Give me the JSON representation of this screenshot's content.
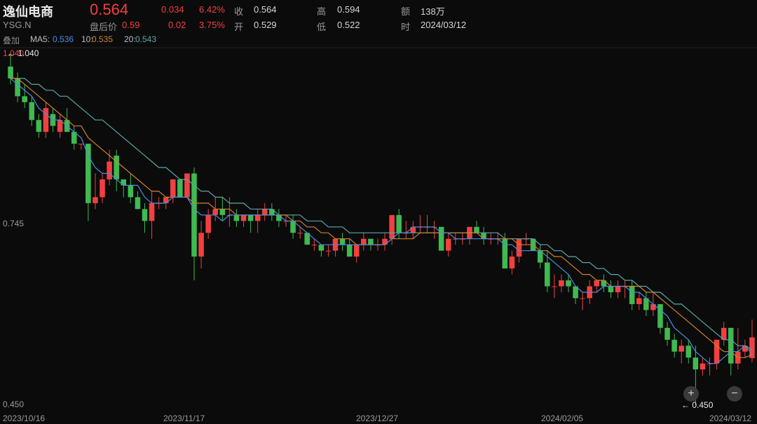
{
  "header": {
    "name": "逸仙电商",
    "symbol": "YSG.N",
    "price": "0.564",
    "change": "0.034",
    "change_pct": "6.42%",
    "after_label": "盘后价",
    "after_price": "0.59",
    "after_change": "0.02",
    "after_change_pct": "3.75%",
    "close_label": "收",
    "close": "0.564",
    "open_label": "开",
    "open": "0.529",
    "high_label": "高",
    "high": "0.594",
    "low_label": "低",
    "low": "0.522",
    "amount_label": "额",
    "amount": "138万",
    "time_label": "时",
    "time": "2024/03/12"
  },
  "indicators": {
    "overlay_label": "叠加",
    "ma5_label": "MA5:",
    "ma5": "0.536",
    "ma10_label": "10:",
    "ma10": "0.535",
    "ma20_label": "20:",
    "ma20": "0.543"
  },
  "controls": {
    "plus_icon": "+",
    "minus_icon": "−"
  },
  "colors": {
    "up": "#f2403f",
    "down": "#3fb950",
    "ma5": "#4a8fe0",
    "ma10": "#d0822c",
    "ma20": "#5aa8a8"
  },
  "chart_data": {
    "type": "candlestick",
    "ylim": [
      0.45,
      1.04
    ],
    "y_axis_labels": [
      "1.040",
      "0.745",
      "0.450"
    ],
    "x_axis_labels": [
      "2023/10/16",
      "2023/11/17",
      "2023/12/27",
      "2024/02/05",
      "2024/03/12"
    ],
    "max_marker": "1.040",
    "min_marker": "0.450",
    "candles": [
      [
        1.02,
        1.04,
        0.99,
        1.0
      ],
      [
        1.0,
        1.01,
        0.96,
        0.97
      ],
      [
        0.97,
        0.99,
        0.95,
        0.96
      ],
      [
        0.96,
        0.97,
        0.92,
        0.93
      ],
      [
        0.93,
        0.94,
        0.9,
        0.91
      ],
      [
        0.91,
        0.96,
        0.9,
        0.95
      ],
      [
        0.94,
        0.95,
        0.91,
        0.92
      ],
      [
        0.91,
        0.94,
        0.9,
        0.93
      ],
      [
        0.93,
        0.95,
        0.91,
        0.91
      ],
      [
        0.91,
        0.92,
        0.88,
        0.89
      ],
      [
        0.89,
        0.89,
        0.88,
        0.89
      ],
      [
        0.89,
        0.89,
        0.76,
        0.79
      ],
      [
        0.79,
        0.84,
        0.78,
        0.8
      ],
      [
        0.8,
        0.84,
        0.79,
        0.83
      ],
      [
        0.83,
        0.88,
        0.82,
        0.86
      ],
      [
        0.87,
        0.88,
        0.81,
        0.83
      ],
      [
        0.83,
        0.83,
        0.8,
        0.82
      ],
      [
        0.82,
        0.84,
        0.79,
        0.8
      ],
      [
        0.8,
        0.81,
        0.78,
        0.78
      ],
      [
        0.78,
        0.79,
        0.74,
        0.76
      ],
      [
        0.76,
        0.81,
        0.73,
        0.79
      ],
      [
        0.79,
        0.8,
        0.78,
        0.79
      ],
      [
        0.79,
        0.8,
        0.78,
        0.8
      ],
      [
        0.8,
        0.83,
        0.79,
        0.83
      ],
      [
        0.83,
        0.83,
        0.8,
        0.8
      ],
      [
        0.8,
        0.84,
        0.8,
        0.84
      ],
      [
        0.84,
        0.85,
        0.66,
        0.7
      ],
      [
        0.7,
        0.76,
        0.68,
        0.74
      ],
      [
        0.74,
        0.78,
        0.73,
        0.77
      ],
      [
        0.77,
        0.8,
        0.76,
        0.78
      ],
      [
        0.78,
        0.8,
        0.76,
        0.77
      ],
      [
        0.77,
        0.8,
        0.75,
        0.77
      ],
      [
        0.77,
        0.78,
        0.75,
        0.76
      ],
      [
        0.76,
        0.77,
        0.75,
        0.77
      ],
      [
        0.77,
        0.77,
        0.74,
        0.76
      ],
      [
        0.76,
        0.78,
        0.74,
        0.77
      ],
      [
        0.77,
        0.79,
        0.76,
        0.78
      ],
      [
        0.78,
        0.79,
        0.76,
        0.77
      ],
      [
        0.77,
        0.78,
        0.75,
        0.76
      ],
      [
        0.76,
        0.77,
        0.75,
        0.76
      ],
      [
        0.76,
        0.77,
        0.73,
        0.74
      ],
      [
        0.74,
        0.75,
        0.73,
        0.74
      ],
      [
        0.74,
        0.74,
        0.72,
        0.72
      ],
      [
        0.72,
        0.73,
        0.71,
        0.72
      ],
      [
        0.72,
        0.72,
        0.7,
        0.71
      ],
      [
        0.71,
        0.72,
        0.7,
        0.71
      ],
      [
        0.71,
        0.73,
        0.7,
        0.73
      ],
      [
        0.73,
        0.74,
        0.71,
        0.72
      ],
      [
        0.72,
        0.73,
        0.7,
        0.7
      ],
      [
        0.7,
        0.72,
        0.69,
        0.72
      ],
      [
        0.72,
        0.74,
        0.71,
        0.73
      ],
      [
        0.73,
        0.73,
        0.71,
        0.72
      ],
      [
        0.72,
        0.73,
        0.71,
        0.72
      ],
      [
        0.72,
        0.74,
        0.71,
        0.73
      ],
      [
        0.73,
        0.77,
        0.72,
        0.77
      ],
      [
        0.77,
        0.78,
        0.73,
        0.74
      ],
      [
        0.74,
        0.76,
        0.73,
        0.74
      ],
      [
        0.74,
        0.76,
        0.73,
        0.75
      ],
      [
        0.75,
        0.77,
        0.74,
        0.75
      ],
      [
        0.75,
        0.77,
        0.74,
        0.75
      ],
      [
        0.75,
        0.76,
        0.73,
        0.75
      ],
      [
        0.75,
        0.75,
        0.71,
        0.71
      ],
      [
        0.71,
        0.74,
        0.7,
        0.73
      ],
      [
        0.73,
        0.74,
        0.72,
        0.73
      ],
      [
        0.73,
        0.74,
        0.72,
        0.73
      ],
      [
        0.73,
        0.75,
        0.72,
        0.75
      ],
      [
        0.75,
        0.76,
        0.74,
        0.74
      ],
      [
        0.74,
        0.75,
        0.72,
        0.73
      ],
      [
        0.73,
        0.74,
        0.72,
        0.73
      ],
      [
        0.73,
        0.74,
        0.72,
        0.73
      ],
      [
        0.73,
        0.74,
        0.68,
        0.68
      ],
      [
        0.68,
        0.71,
        0.67,
        0.7
      ],
      [
        0.7,
        0.73,
        0.69,
        0.73
      ],
      [
        0.73,
        0.74,
        0.72,
        0.73
      ],
      [
        0.73,
        0.73,
        0.71,
        0.71
      ],
      [
        0.71,
        0.72,
        0.68,
        0.69
      ],
      [
        0.69,
        0.71,
        0.64,
        0.65
      ],
      [
        0.65,
        0.67,
        0.63,
        0.65
      ],
      [
        0.65,
        0.67,
        0.64,
        0.66
      ],
      [
        0.66,
        0.67,
        0.64,
        0.65
      ],
      [
        0.65,
        0.65,
        0.62,
        0.63
      ],
      [
        0.63,
        0.64,
        0.61,
        0.63
      ],
      [
        0.63,
        0.66,
        0.62,
        0.65
      ],
      [
        0.65,
        0.66,
        0.64,
        0.66
      ],
      [
        0.66,
        0.67,
        0.64,
        0.65
      ],
      [
        0.65,
        0.66,
        0.63,
        0.64
      ],
      [
        0.64,
        0.66,
        0.63,
        0.65
      ],
      [
        0.65,
        0.66,
        0.63,
        0.65
      ],
      [
        0.65,
        0.66,
        0.61,
        0.62
      ],
      [
        0.62,
        0.64,
        0.61,
        0.63
      ],
      [
        0.63,
        0.64,
        0.6,
        0.61
      ],
      [
        0.61,
        0.64,
        0.6,
        0.62
      ],
      [
        0.62,
        0.62,
        0.57,
        0.58
      ],
      [
        0.58,
        0.59,
        0.55,
        0.56
      ],
      [
        0.56,
        0.57,
        0.53,
        0.54
      ],
      [
        0.54,
        0.56,
        0.52,
        0.55
      ],
      [
        0.55,
        0.56,
        0.52,
        0.53
      ],
      [
        0.53,
        0.55,
        0.45,
        0.51
      ],
      [
        0.51,
        0.53,
        0.5,
        0.52
      ],
      [
        0.52,
        0.53,
        0.5,
        0.52
      ],
      [
        0.52,
        0.56,
        0.51,
        0.56
      ],
      [
        0.56,
        0.59,
        0.55,
        0.58
      ],
      [
        0.58,
        0.58,
        0.5,
        0.52
      ],
      [
        0.52,
        0.58,
        0.51,
        0.54
      ],
      [
        0.54,
        0.56,
        0.53,
        0.55
      ],
      [
        0.529,
        0.594,
        0.522,
        0.564
      ]
    ],
    "ma5": [
      1.0,
      0.99,
      0.98,
      0.97,
      0.95,
      0.94,
      0.93,
      0.93,
      0.92,
      0.91,
      0.9,
      0.87,
      0.85,
      0.84,
      0.84,
      0.83,
      0.82,
      0.82,
      0.82,
      0.8,
      0.79,
      0.79,
      0.79,
      0.8,
      0.8,
      0.8,
      0.78,
      0.77,
      0.77,
      0.77,
      0.76,
      0.77,
      0.77,
      0.77,
      0.77,
      0.77,
      0.77,
      0.77,
      0.77,
      0.76,
      0.76,
      0.75,
      0.74,
      0.73,
      0.72,
      0.72,
      0.72,
      0.72,
      0.72,
      0.72,
      0.72,
      0.72,
      0.72,
      0.72,
      0.73,
      0.74,
      0.74,
      0.75,
      0.75,
      0.75,
      0.75,
      0.74,
      0.74,
      0.73,
      0.73,
      0.73,
      0.73,
      0.73,
      0.73,
      0.73,
      0.72,
      0.72,
      0.71,
      0.71,
      0.71,
      0.71,
      0.7,
      0.69,
      0.68,
      0.67,
      0.65,
      0.64,
      0.64,
      0.64,
      0.65,
      0.65,
      0.65,
      0.65,
      0.64,
      0.64,
      0.63,
      0.62,
      0.61,
      0.6,
      0.58,
      0.57,
      0.56,
      0.54,
      0.53,
      0.52,
      0.52,
      0.53,
      0.54,
      0.54,
      0.55,
      0.536
    ],
    "ma10": [
      1.0,
      1.0,
      0.99,
      0.98,
      0.97,
      0.96,
      0.95,
      0.94,
      0.93,
      0.92,
      0.92,
      0.9,
      0.89,
      0.88,
      0.87,
      0.86,
      0.85,
      0.84,
      0.83,
      0.82,
      0.81,
      0.81,
      0.8,
      0.8,
      0.8,
      0.8,
      0.79,
      0.79,
      0.79,
      0.78,
      0.78,
      0.78,
      0.77,
      0.77,
      0.77,
      0.77,
      0.77,
      0.77,
      0.77,
      0.77,
      0.76,
      0.76,
      0.75,
      0.75,
      0.74,
      0.74,
      0.73,
      0.73,
      0.73,
      0.72,
      0.72,
      0.72,
      0.72,
      0.72,
      0.73,
      0.73,
      0.73,
      0.73,
      0.74,
      0.74,
      0.74,
      0.74,
      0.74,
      0.74,
      0.74,
      0.74,
      0.74,
      0.73,
      0.73,
      0.73,
      0.73,
      0.73,
      0.72,
      0.72,
      0.72,
      0.71,
      0.71,
      0.7,
      0.7,
      0.69,
      0.68,
      0.67,
      0.67,
      0.66,
      0.66,
      0.65,
      0.65,
      0.65,
      0.65,
      0.65,
      0.64,
      0.64,
      0.63,
      0.62,
      0.61,
      0.6,
      0.59,
      0.58,
      0.57,
      0.56,
      0.55,
      0.54,
      0.54,
      0.53,
      0.53,
      0.535
    ],
    "ma20": [
      1.0,
      1.0,
      1.0,
      0.99,
      0.99,
      0.98,
      0.98,
      0.97,
      0.97,
      0.96,
      0.95,
      0.94,
      0.93,
      0.93,
      0.92,
      0.91,
      0.9,
      0.89,
      0.88,
      0.87,
      0.86,
      0.85,
      0.85,
      0.84,
      0.83,
      0.83,
      0.82,
      0.81,
      0.81,
      0.8,
      0.8,
      0.79,
      0.79,
      0.79,
      0.78,
      0.78,
      0.78,
      0.78,
      0.77,
      0.77,
      0.77,
      0.77,
      0.76,
      0.76,
      0.76,
      0.75,
      0.75,
      0.75,
      0.74,
      0.74,
      0.74,
      0.74,
      0.74,
      0.74,
      0.74,
      0.74,
      0.74,
      0.74,
      0.74,
      0.74,
      0.74,
      0.74,
      0.74,
      0.74,
      0.74,
      0.74,
      0.74,
      0.74,
      0.74,
      0.74,
      0.73,
      0.73,
      0.73,
      0.73,
      0.73,
      0.72,
      0.72,
      0.71,
      0.71,
      0.7,
      0.7,
      0.69,
      0.69,
      0.68,
      0.68,
      0.67,
      0.67,
      0.66,
      0.66,
      0.65,
      0.65,
      0.64,
      0.64,
      0.63,
      0.62,
      0.62,
      0.61,
      0.6,
      0.59,
      0.58,
      0.57,
      0.56,
      0.56,
      0.55,
      0.55,
      0.543
    ]
  }
}
